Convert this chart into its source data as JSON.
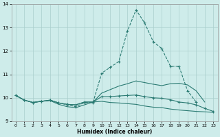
{
  "xlabel": "Humidex (Indice chaleur)",
  "bg_color": "#ceecea",
  "grid_color": "#aacfcc",
  "line_color": "#2a7a72",
  "line1_x": [
    0,
    1,
    2,
    3,
    4,
    5,
    6,
    7,
    8,
    9,
    10,
    11,
    12,
    13,
    14,
    15,
    16,
    17,
    18,
    19,
    20,
    21
  ],
  "line1_y": [
    10.1,
    9.9,
    9.8,
    9.85,
    9.9,
    9.78,
    9.7,
    9.62,
    9.8,
    9.8,
    11.05,
    11.3,
    11.55,
    12.85,
    13.75,
    13.2,
    12.4,
    12.1,
    11.35,
    11.35,
    10.3,
    9.82
  ],
  "line2_x": [
    0,
    1,
    2,
    3,
    4,
    5,
    6,
    7,
    8,
    9,
    10,
    11,
    12,
    13,
    14,
    15,
    16,
    17,
    18,
    19,
    20,
    21,
    22,
    23
  ],
  "line2_y": [
    10.1,
    9.9,
    9.8,
    9.85,
    9.9,
    9.78,
    9.72,
    9.7,
    9.82,
    9.82,
    10.2,
    10.35,
    10.5,
    10.6,
    10.72,
    10.65,
    10.58,
    10.52,
    10.6,
    10.62,
    10.55,
    10.3,
    9.82,
    null
  ],
  "line3_x": [
    0,
    1,
    2,
    3,
    4,
    5,
    6,
    7,
    8,
    9,
    10,
    11,
    12,
    13,
    14,
    15,
    16,
    17,
    18,
    19,
    20,
    21,
    22,
    23
  ],
  "line3_y": [
    10.1,
    9.9,
    9.8,
    9.85,
    9.9,
    9.78,
    9.72,
    9.7,
    9.82,
    9.82,
    10.05,
    10.05,
    10.08,
    10.1,
    10.12,
    10.05,
    10.0,
    9.98,
    9.92,
    9.82,
    9.78,
    9.7,
    9.55,
    9.42
  ],
  "line4_x": [
    0,
    1,
    2,
    3,
    4,
    5,
    6,
    7,
    8,
    9,
    10,
    11,
    12,
    13,
    14,
    15,
    16,
    17,
    18,
    19,
    20,
    21,
    22,
    23
  ],
  "line4_y": [
    10.1,
    9.9,
    9.8,
    9.85,
    9.88,
    9.72,
    9.62,
    9.58,
    9.7,
    9.82,
    9.85,
    9.8,
    9.78,
    9.75,
    9.72,
    9.65,
    9.6,
    9.58,
    9.52,
    9.48,
    9.45,
    9.42,
    9.4,
    9.38
  ],
  "xlim": [
    -0.5,
    23.5
  ],
  "ylim": [
    9.0,
    14.0
  ],
  "yticks": [
    9,
    10,
    11,
    12,
    13,
    14
  ],
  "xticks": [
    0,
    1,
    2,
    3,
    4,
    5,
    6,
    7,
    8,
    9,
    10,
    11,
    12,
    13,
    14,
    15,
    16,
    17,
    18,
    19,
    20,
    21,
    22,
    23
  ]
}
